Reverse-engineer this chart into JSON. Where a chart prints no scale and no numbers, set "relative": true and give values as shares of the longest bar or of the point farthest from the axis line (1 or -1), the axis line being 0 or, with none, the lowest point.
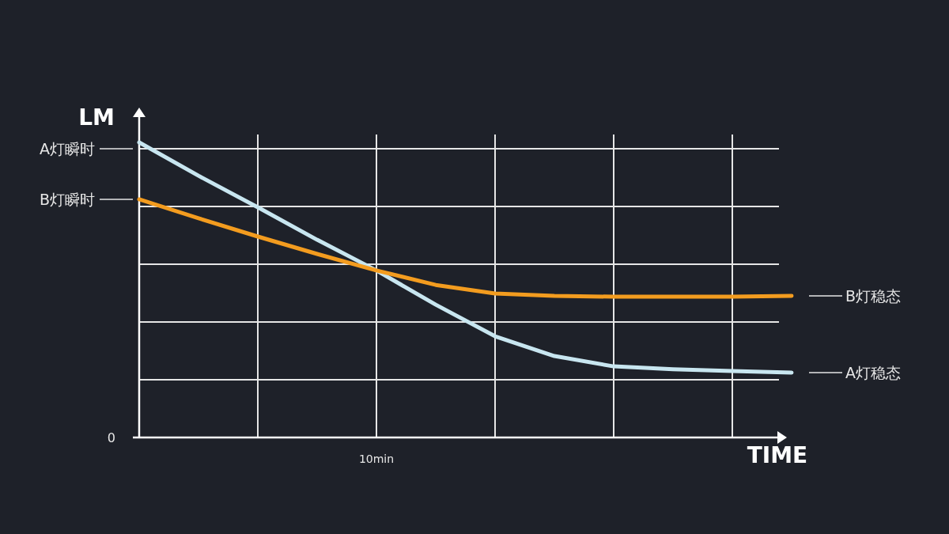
{
  "chart_data": {
    "type": "line",
    "relative": true,
    "ylabel": "LM",
    "xlabel": "TIME",
    "categories": [
      null,
      null,
      null,
      null,
      null,
      null,
      null,
      null,
      null,
      null,
      null,
      null
    ],
    "grid": true,
    "marker": "none",
    "line_style": "solid",
    "series": [
      {
        "color": "#c8e6f0",
        "values": [
          1.0,
          0.887,
          0.78,
          0.67,
          0.566,
          0.45,
          0.343,
          0.276,
          0.241,
          0.231,
          0.225,
          0.22
        ]
      },
      {
        "color": "#f39c1f",
        "values": [
          0.807,
          0.743,
          0.681,
          0.622,
          0.566,
          0.517,
          0.488,
          0.48,
          0.477,
          0.477,
          0.477,
          0.48
        ]
      }
    ],
    "annotations": [
      "A灯瞬时",
      "B灯瞬时",
      "0",
      "10min",
      "B灯稳态",
      "A灯稳态"
    ]
  }
}
